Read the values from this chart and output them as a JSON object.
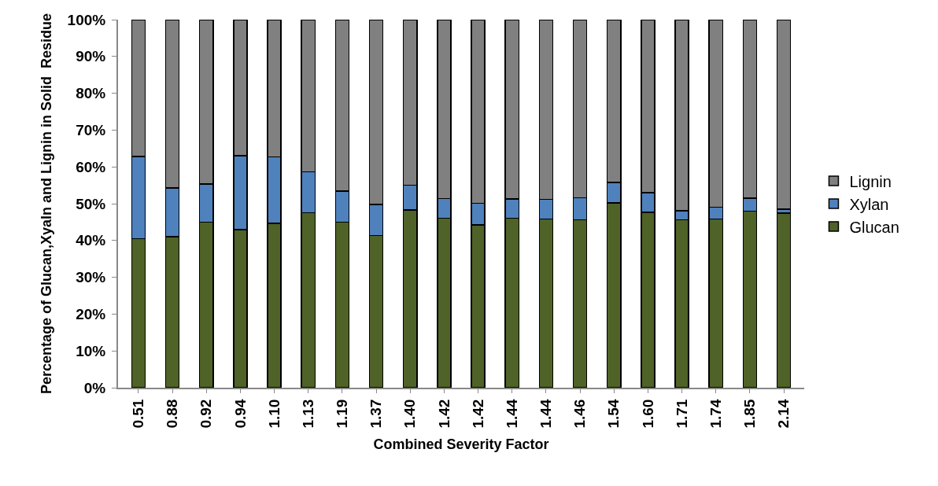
{
  "chart_data": {
    "type": "bar",
    "stacked": true,
    "xlabel": "Combined Severity Factor",
    "ylabel": "Percentage of Glucan,Xyaln and Lignin in Solid  Residue",
    "categories": [
      "0.51",
      "0.88",
      "0.92",
      "0.94",
      "1.10",
      "1.13",
      "1.19",
      "1.37",
      "1.40",
      "1.42",
      "1.42",
      "1.44",
      "1.44",
      "1.46",
      "1.54",
      "1.60",
      "1.71",
      "1.74",
      "1.85",
      "2.14"
    ],
    "series": [
      {
        "name": "Glucan",
        "color": "#4f6228",
        "values": [
          40.5,
          41,
          45,
          43,
          44.7,
          47.5,
          45,
          41.3,
          48.3,
          46,
          44.2,
          46,
          45.8,
          45.6,
          50.2,
          47.6,
          45.6,
          45.8,
          48,
          47.4
        ]
      },
      {
        "name": "Xylan",
        "color": "#4f81bd",
        "values": [
          22.3,
          13.3,
          10.3,
          20,
          18,
          11.2,
          8.4,
          8.5,
          6.7,
          5.4,
          5.9,
          5.3,
          5.4,
          6,
          5.6,
          5.4,
          2.5,
          3.2,
          3.5,
          1.1
        ]
      },
      {
        "name": "Lignin",
        "color": "#808080",
        "values": [
          37.2,
          45.7,
          44.7,
          37,
          37.3,
          41.3,
          46.6,
          50.2,
          45,
          48.6,
          49.9,
          48.7,
          48.8,
          48.4,
          44.2,
          47,
          51.9,
          51,
          48.5,
          51.5
        ]
      }
    ],
    "ylim": [
      0,
      100
    ],
    "yticks": [
      {
        "value": 0,
        "label": "0%"
      },
      {
        "value": 10,
        "label": "10%"
      },
      {
        "value": 20,
        "label": "20%"
      },
      {
        "value": 30,
        "label": "30%"
      },
      {
        "value": 40,
        "label": "40%"
      },
      {
        "value": 50,
        "label": "50%"
      },
      {
        "value": 60,
        "label": "60%"
      },
      {
        "value": 70,
        "label": "70%"
      },
      {
        "value": 80,
        "label": "80%"
      },
      {
        "value": 90,
        "label": "90%"
      },
      {
        "value": 100,
        "label": "100%"
      }
    ],
    "legend": "right",
    "grid": false
  }
}
